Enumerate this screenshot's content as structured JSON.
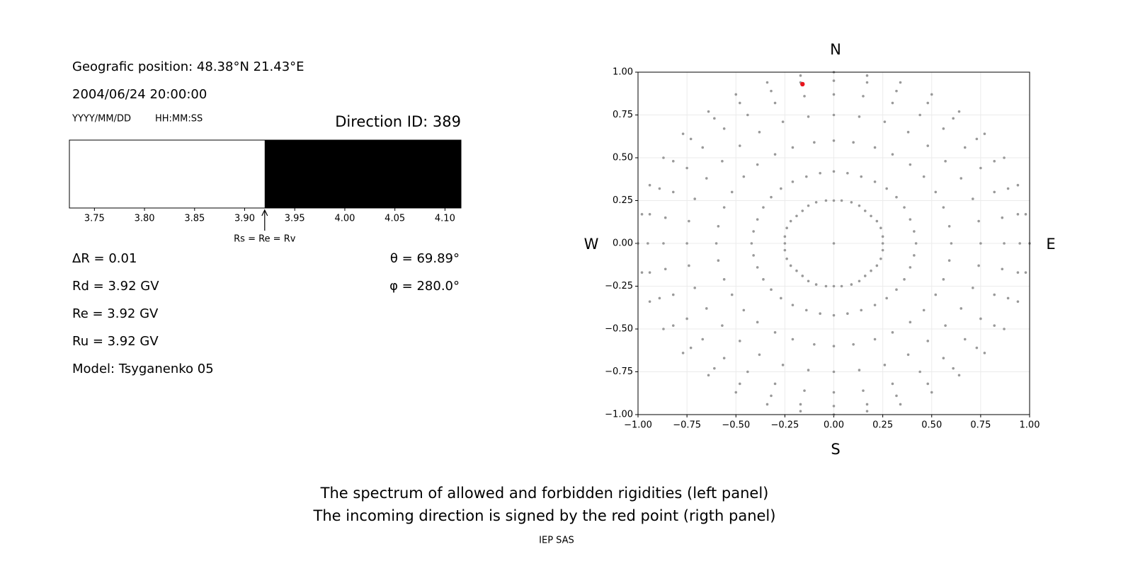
{
  "info": {
    "position": "Geografic position: 48.38°N 21.43°E",
    "datetime": "2004/06/24 20:00:00",
    "date_format": "YYYY/MM/DD",
    "time_format": "HH:MM:SS",
    "direction": "Direction ID: 389",
    "delta_r": "ΔR = 0.01",
    "theta": "θ = 69.89°",
    "rd": "Rd = 3.92 GV",
    "phi": "φ = 280.0°",
    "re": "Re = 3.92 GV",
    "ru": "Ru = 3.92 GV",
    "model": "Model: Tsyganenko 05"
  },
  "chart_data": [
    {
      "type": "spectrum",
      "xlim": [
        3.725,
        4.116
      ],
      "xticks": [
        3.75,
        {
          "value": 3.8,
          "label": "3.80"
        },
        3.85,
        {
          "value": 3.9,
          "label": "3.90"
        },
        3.95,
        {
          "value": 4.0,
          "label": "4.00"
        },
        4.05,
        {
          "value": 4.1,
          "label": "4.10"
        }
      ],
      "segments": [
        {
          "from": 3.725,
          "to": 3.92,
          "color": "#ffffff"
        },
        {
          "from": 3.92,
          "to": 4.116,
          "color": "#000000"
        }
      ],
      "annotation": {
        "text": "Rs = Re = Rv",
        "x": 3.92
      }
    },
    {
      "type": "scatter",
      "xlim": [
        -1,
        1
      ],
      "ylim": [
        -1,
        1
      ],
      "xticks": [
        {
          "value": -1,
          "label": "−1.00"
        },
        {
          "value": -0.75,
          "label": "−0.75"
        },
        {
          "value": -0.5,
          "label": "−0.50"
        },
        {
          "value": -0.25,
          "label": "−0.25"
        },
        {
          "value": 0,
          "label": "0.00"
        },
        0.25,
        {
          "value": 0.5,
          "label": "0.50"
        },
        0.75,
        {
          "value": 1,
          "label": "1.00"
        }
      ],
      "yticks": [
        {
          "value": -1,
          "label": "−1.00"
        },
        {
          "value": -0.75,
          "label": "−0.75"
        },
        {
          "value": -0.5,
          "label": "−0.50"
        },
        {
          "value": -0.25,
          "label": "−0.25"
        },
        {
          "value": 0,
          "label": "0.00"
        },
        0.25,
        {
          "value": 0.5,
          "label": "0.50"
        },
        0.75,
        {
          "value": 1,
          "label": "1.00"
        }
      ],
      "grid": true,
      "compass": {
        "n": "N",
        "s": "S",
        "w": "W",
        "e": "E"
      },
      "series": [
        {
          "color": "#999999",
          "x": [
            0,
            0,
            0.04,
            0.09,
            0.13,
            0.16,
            0.19,
            0.22,
            0.24,
            0.25,
            0.25,
            0.25,
            0.24,
            0.22,
            0.19,
            0.16,
            0.13,
            0.09,
            0.04,
            0,
            -0.04,
            -0.09,
            -0.13,
            -0.16,
            -0.19,
            -0.22,
            -0.24,
            -0.25,
            -0.25,
            -0.25,
            -0.24,
            -0.22,
            -0.19,
            -0.16,
            -0.13,
            -0.09,
            -0.04,
            0,
            0.07,
            0.14,
            0.21,
            0.27,
            0.32,
            0.36,
            0.39,
            0.41,
            0.42,
            0.41,
            0.39,
            0.36,
            0.32,
            0.27,
            0.21,
            0.14,
            0.07,
            0,
            -0.07,
            -0.14,
            -0.21,
            -0.27,
            -0.32,
            -0.36,
            -0.39,
            -0.41,
            -0.42,
            -0.41,
            -0.39,
            -0.36,
            -0.32,
            -0.27,
            -0.21,
            -0.14,
            -0.07,
            0,
            0.1,
            0.21,
            0.3,
            0.39,
            0.46,
            0.52,
            0.56,
            0.59,
            0.6,
            0.59,
            0.56,
            0.52,
            0.46,
            0.39,
            0.3,
            0.21,
            0.1,
            0,
            -0.1,
            -0.21,
            -0.3,
            -0.39,
            -0.46,
            -0.52,
            -0.56,
            -0.59,
            -0.6,
            -0.59,
            -0.56,
            -0.52,
            -0.46,
            -0.39,
            -0.3,
            -0.21,
            -0.1,
            0,
            0.13,
            0.26,
            0.38,
            0.48,
            0.57,
            0.65,
            0.71,
            0.74,
            0.75,
            0.74,
            0.71,
            0.65,
            0.57,
            0.48,
            0.38,
            0.26,
            0.13,
            0,
            -0.13,
            -0.26,
            -0.38,
            -0.48,
            -0.57,
            -0.65,
            -0.71,
            -0.74,
            -0.75,
            -0.74,
            -0.71,
            -0.65,
            -0.57,
            -0.48,
            -0.38,
            -0.26,
            -0.13,
            0,
            0.15,
            0.3,
            0.44,
            0.56,
            0.67,
            0.75,
            0.82,
            0.86,
            0.87,
            0.86,
            0.82,
            0.75,
            0.67,
            0.56,
            0.44,
            0.3,
            0.15,
            0,
            -0.15,
            -0.3,
            -0.44,
            -0.56,
            -0.67,
            -0.75,
            -0.82,
            -0.86,
            -0.87,
            -0.86,
            -0.82,
            -0.75,
            -0.67,
            -0.56,
            -0.44,
            -0.3,
            -0.15,
            0,
            0.17,
            0.32,
            0.48,
            0.61,
            0.73,
            0.82,
            0.89,
            0.94,
            0.95,
            0.94,
            0.89,
            0.82,
            0.73,
            0.61,
            0.48,
            0.32,
            0.17,
            0,
            -0.17,
            -0.32,
            -0.48,
            -0.61,
            -0.73,
            -0.82,
            -0.89,
            -0.94,
            -0.95,
            -0.94,
            -0.89,
            -0.82,
            -0.73,
            -0.61,
            -0.48,
            -0.32,
            -0.17,
            0,
            0.17,
            0.34,
            0.5,
            0.64,
            0.77,
            0.87,
            0.94,
            0.98,
            1,
            0.98,
            0.94,
            0.87,
            0.77,
            0.64,
            0.5,
            0.34,
            0.17,
            0,
            -0.17,
            -0.34,
            -0.5,
            -0.64,
            -0.77,
            -0.87,
            -0.94,
            -0.98,
            -1,
            -0.98,
            -0.94,
            -0.87,
            -0.77,
            -0.64,
            -0.5,
            -0.34,
            -0.17
          ],
          "values": [
            0,
            0.25,
            0.25,
            0.24,
            0.22,
            0.19,
            0.16,
            0.13,
            0.09,
            0.04,
            0,
            -0.04,
            -0.09,
            -0.13,
            -0.16,
            -0.19,
            -0.22,
            -0.24,
            -0.25,
            -0.25,
            -0.25,
            -0.24,
            -0.22,
            -0.19,
            -0.16,
            -0.13,
            -0.09,
            -0.04,
            0,
            0.04,
            0.09,
            0.13,
            0.16,
            0.19,
            0.22,
            0.24,
            0.25,
            0.42,
            0.41,
            0.39,
            0.36,
            0.32,
            0.27,
            0.21,
            0.14,
            0.07,
            0,
            -0.07,
            -0.14,
            -0.21,
            -0.27,
            -0.32,
            -0.36,
            -0.39,
            -0.41,
            -0.42,
            -0.41,
            -0.39,
            -0.36,
            -0.32,
            -0.27,
            -0.21,
            -0.14,
            -0.07,
            0,
            0.07,
            0.14,
            0.21,
            0.27,
            0.32,
            0.36,
            0.39,
            0.41,
            0.6,
            0.59,
            0.56,
            0.52,
            0.46,
            0.39,
            0.3,
            0.21,
            0.1,
            0,
            -0.1,
            -0.21,
            -0.3,
            -0.39,
            -0.46,
            -0.52,
            -0.56,
            -0.59,
            -0.6,
            -0.59,
            -0.56,
            -0.52,
            -0.46,
            -0.39,
            -0.3,
            -0.21,
            -0.1,
            0,
            0.1,
            0.21,
            0.3,
            0.39,
            0.46,
            0.52,
            0.56,
            0.59,
            0.75,
            0.74,
            0.71,
            0.65,
            0.57,
            0.48,
            0.38,
            0.26,
            0.13,
            0,
            -0.13,
            -0.26,
            -0.38,
            -0.48,
            -0.57,
            -0.65,
            -0.71,
            -0.74,
            -0.75,
            -0.74,
            -0.71,
            -0.65,
            -0.57,
            -0.48,
            -0.38,
            -0.26,
            -0.13,
            0,
            0.13,
            0.26,
            0.38,
            0.48,
            0.57,
            0.65,
            0.71,
            0.74,
            0.87,
            0.86,
            0.82,
            0.75,
            0.67,
            0.56,
            0.44,
            0.3,
            0.15,
            0,
            -0.15,
            -0.3,
            -0.44,
            -0.56,
            -0.67,
            -0.75,
            -0.82,
            -0.86,
            -0.87,
            -0.86,
            -0.82,
            -0.75,
            -0.67,
            -0.56,
            -0.44,
            -0.3,
            -0.15,
            0,
            0.15,
            0.3,
            0.44,
            0.56,
            0.67,
            0.75,
            0.82,
            0.86,
            0.95,
            0.94,
            0.89,
            0.82,
            0.73,
            0.61,
            0.48,
            0.32,
            0.17,
            0,
            -0.17,
            -0.32,
            -0.48,
            -0.61,
            -0.73,
            -0.82,
            -0.89,
            -0.94,
            -0.95,
            -0.94,
            -0.89,
            -0.82,
            -0.73,
            -0.61,
            -0.48,
            -0.32,
            -0.17,
            0,
            0.17,
            0.32,
            0.48,
            0.61,
            0.73,
            0.82,
            0.89,
            0.94,
            1,
            0.98,
            0.94,
            0.87,
            0.77,
            0.64,
            0.5,
            0.34,
            0.17,
            0,
            -0.17,
            -0.34,
            -0.5,
            -0.64,
            -0.77,
            -0.87,
            -0.94,
            -0.98,
            -1,
            -0.98,
            -0.94,
            -0.87,
            -0.77,
            -0.64,
            -0.5,
            -0.34,
            -0.17,
            0,
            0.17,
            0.34,
            0.5,
            0.64,
            0.77,
            0.87,
            0.94,
            0.98
          ]
        },
        {
          "color": "#e8141c",
          "x": [
            -0.16
          ],
          "values": [
            0.93
          ]
        }
      ]
    }
  ],
  "footer": {
    "lines": [
      "The spectrum of allowed and forbidden rigidities (left panel)",
      "The incoming direction is signed by the red point (rigth panel)"
    ],
    "credit": "IEP SAS"
  }
}
